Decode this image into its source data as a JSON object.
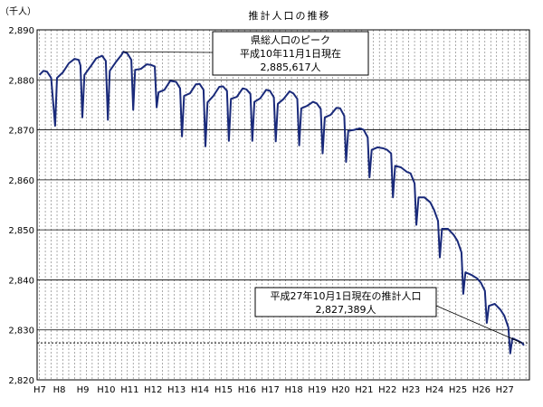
{
  "chart_data": {
    "type": "line",
    "title": "推計人口の推移",
    "ylabel": "（千人）",
    "ylim": [
      2820,
      2890
    ],
    "yticks": [
      2820,
      2830,
      2840,
      2850,
      2860,
      2870,
      2880,
      2890
    ],
    "ytick_labels": [
      "2,820",
      "2,830",
      "2,840",
      "2,850",
      "2,860",
      "2,870",
      "2,880",
      "2,890"
    ],
    "xticks": [
      {
        "year": 8,
        "label": "H8"
      },
      {
        "year": 9,
        "label": "H9"
      },
      {
        "year": 10,
        "label": "H10"
      },
      {
        "year": 11,
        "label": "H11"
      },
      {
        "year": 12,
        "label": "H12"
      },
      {
        "year": 13,
        "label": "H13"
      },
      {
        "year": 14,
        "label": "H14"
      },
      {
        "year": 15,
        "label": "H15"
      },
      {
        "year": 16,
        "label": "H16"
      },
      {
        "year": 17,
        "label": "H17"
      },
      {
        "year": 18,
        "label": "H18"
      },
      {
        "year": 19,
        "label": "H19"
      },
      {
        "year": 20,
        "label": "H20"
      },
      {
        "year": 21,
        "label": "H21"
      },
      {
        "year": 22,
        "label": "H22"
      },
      {
        "year": 23,
        "label": "H23"
      },
      {
        "year": 24,
        "label": "H24"
      },
      {
        "year": 25,
        "label": "H25"
      },
      {
        "year": 26,
        "label": "H26"
      },
      {
        "year": 27,
        "label": "H27"
      }
    ],
    "x_start_label": "H7",
    "grid": true,
    "reference_line": 2827.389,
    "series": [
      {
        "color": "#1a2a7a",
        "points": [
          [
            7.25,
            2881.0
          ],
          [
            7.42,
            2881.8
          ],
          [
            7.58,
            2881.6
          ],
          [
            7.75,
            2880.4
          ],
          [
            7.92,
            2870.8
          ],
          [
            8.0,
            2880.4
          ],
          [
            8.25,
            2881.5
          ],
          [
            8.5,
            2883.3
          ],
          [
            8.75,
            2884.2
          ],
          [
            8.92,
            2884.0
          ],
          [
            9.0,
            2882.9
          ],
          [
            9.08,
            2872.5
          ],
          [
            9.17,
            2881.0
          ],
          [
            9.42,
            2882.6
          ],
          [
            9.67,
            2884.3
          ],
          [
            9.92,
            2884.8
          ],
          [
            10.08,
            2883.8
          ],
          [
            10.17,
            2872.0
          ],
          [
            10.25,
            2881.8
          ],
          [
            10.5,
            2883.5
          ],
          [
            10.75,
            2885.0
          ],
          [
            10.83,
            2885.617
          ],
          [
            11.0,
            2885.3
          ],
          [
            11.17,
            2884.0
          ],
          [
            11.25,
            2874.0
          ],
          [
            11.33,
            2882.0
          ],
          [
            11.58,
            2882.2
          ],
          [
            11.83,
            2883.1
          ],
          [
            12.0,
            2883.0
          ],
          [
            12.17,
            2882.7
          ],
          [
            12.25,
            2874.5
          ],
          [
            12.33,
            2877.5
          ],
          [
            12.58,
            2878.0
          ],
          [
            12.83,
            2879.8
          ],
          [
            13.08,
            2879.6
          ],
          [
            13.25,
            2878.3
          ],
          [
            13.33,
            2868.7
          ],
          [
            13.42,
            2876.8
          ],
          [
            13.67,
            2877.3
          ],
          [
            13.92,
            2879.1
          ],
          [
            14.08,
            2879.2
          ],
          [
            14.25,
            2878.0
          ],
          [
            14.33,
            2866.7
          ],
          [
            14.42,
            2875.5
          ],
          [
            14.67,
            2876.8
          ],
          [
            14.92,
            2878.6
          ],
          [
            15.08,
            2878.7
          ],
          [
            15.25,
            2877.8
          ],
          [
            15.33,
            2867.8
          ],
          [
            15.42,
            2876.2
          ],
          [
            15.67,
            2876.6
          ],
          [
            15.92,
            2878.3
          ],
          [
            16.08,
            2878.1
          ],
          [
            16.25,
            2877.2
          ],
          [
            16.33,
            2867.8
          ],
          [
            16.42,
            2875.6
          ],
          [
            16.67,
            2876.3
          ],
          [
            16.92,
            2878.0
          ],
          [
            17.08,
            2877.8
          ],
          [
            17.25,
            2876.5
          ],
          [
            17.33,
            2867.7
          ],
          [
            17.42,
            2875.2
          ],
          [
            17.67,
            2876.2
          ],
          [
            17.92,
            2877.7
          ],
          [
            18.08,
            2877.3
          ],
          [
            18.25,
            2876.2
          ],
          [
            18.33,
            2866.9
          ],
          [
            18.42,
            2874.3
          ],
          [
            18.67,
            2874.8
          ],
          [
            18.92,
            2875.6
          ],
          [
            19.08,
            2875.3
          ],
          [
            19.25,
            2874.2
          ],
          [
            19.33,
            2865.3
          ],
          [
            19.42,
            2872.5
          ],
          [
            19.67,
            2873.0
          ],
          [
            19.92,
            2874.4
          ],
          [
            20.08,
            2874.3
          ],
          [
            20.25,
            2872.8
          ],
          [
            20.33,
            2863.6
          ],
          [
            20.42,
            2869.8
          ],
          [
            20.67,
            2870.0
          ],
          [
            20.92,
            2870.3
          ],
          [
            21.08,
            2870.0
          ],
          [
            21.25,
            2868.5
          ],
          [
            21.33,
            2860.5
          ],
          [
            21.42,
            2866.0
          ],
          [
            21.67,
            2866.5
          ],
          [
            21.92,
            2866.3
          ],
          [
            22.08,
            2866.0
          ],
          [
            22.25,
            2865.3
          ],
          [
            22.33,
            2856.5
          ],
          [
            22.42,
            2862.8
          ],
          [
            22.67,
            2862.5
          ],
          [
            22.92,
            2861.6
          ],
          [
            23.08,
            2861.3
          ],
          [
            23.25,
            2859.3
          ],
          [
            23.33,
            2851.0
          ],
          [
            23.42,
            2856.5
          ],
          [
            23.67,
            2856.5
          ],
          [
            23.92,
            2855.5
          ],
          [
            24.08,
            2854.0
          ],
          [
            24.25,
            2851.8
          ],
          [
            24.33,
            2844.5
          ],
          [
            24.42,
            2850.2
          ],
          [
            24.67,
            2850.2
          ],
          [
            24.92,
            2849.0
          ],
          [
            25.08,
            2847.8
          ],
          [
            25.25,
            2845.5
          ],
          [
            25.33,
            2837.2
          ],
          [
            25.42,
            2841.5
          ],
          [
            25.67,
            2841.0
          ],
          [
            25.92,
            2840.3
          ],
          [
            26.08,
            2839.4
          ],
          [
            26.25,
            2837.8
          ],
          [
            26.33,
            2831.4
          ],
          [
            26.42,
            2834.8
          ],
          [
            26.67,
            2835.2
          ],
          [
            26.92,
            2834.0
          ],
          [
            27.08,
            2832.8
          ],
          [
            27.25,
            2830.5
          ],
          [
            27.33,
            2825.3
          ],
          [
            27.42,
            2828.3
          ],
          [
            27.67,
            2827.8
          ],
          [
            27.83,
            2827.389
          ],
          [
            27.92,
            2826.9
          ]
        ]
      }
    ],
    "annotations": [
      {
        "id": "peak",
        "lines": [
          "県総人口のピーク",
          "平成10年11月1日現在",
          "2,885,617人"
        ],
        "point": [
          10.83,
          2885.617
        ]
      },
      {
        "id": "latest",
        "lines": [
          "平成27年10月1日現在の推計人口",
          "2,827,389人"
        ],
        "point": [
          27.83,
          2827.389
        ]
      }
    ]
  }
}
